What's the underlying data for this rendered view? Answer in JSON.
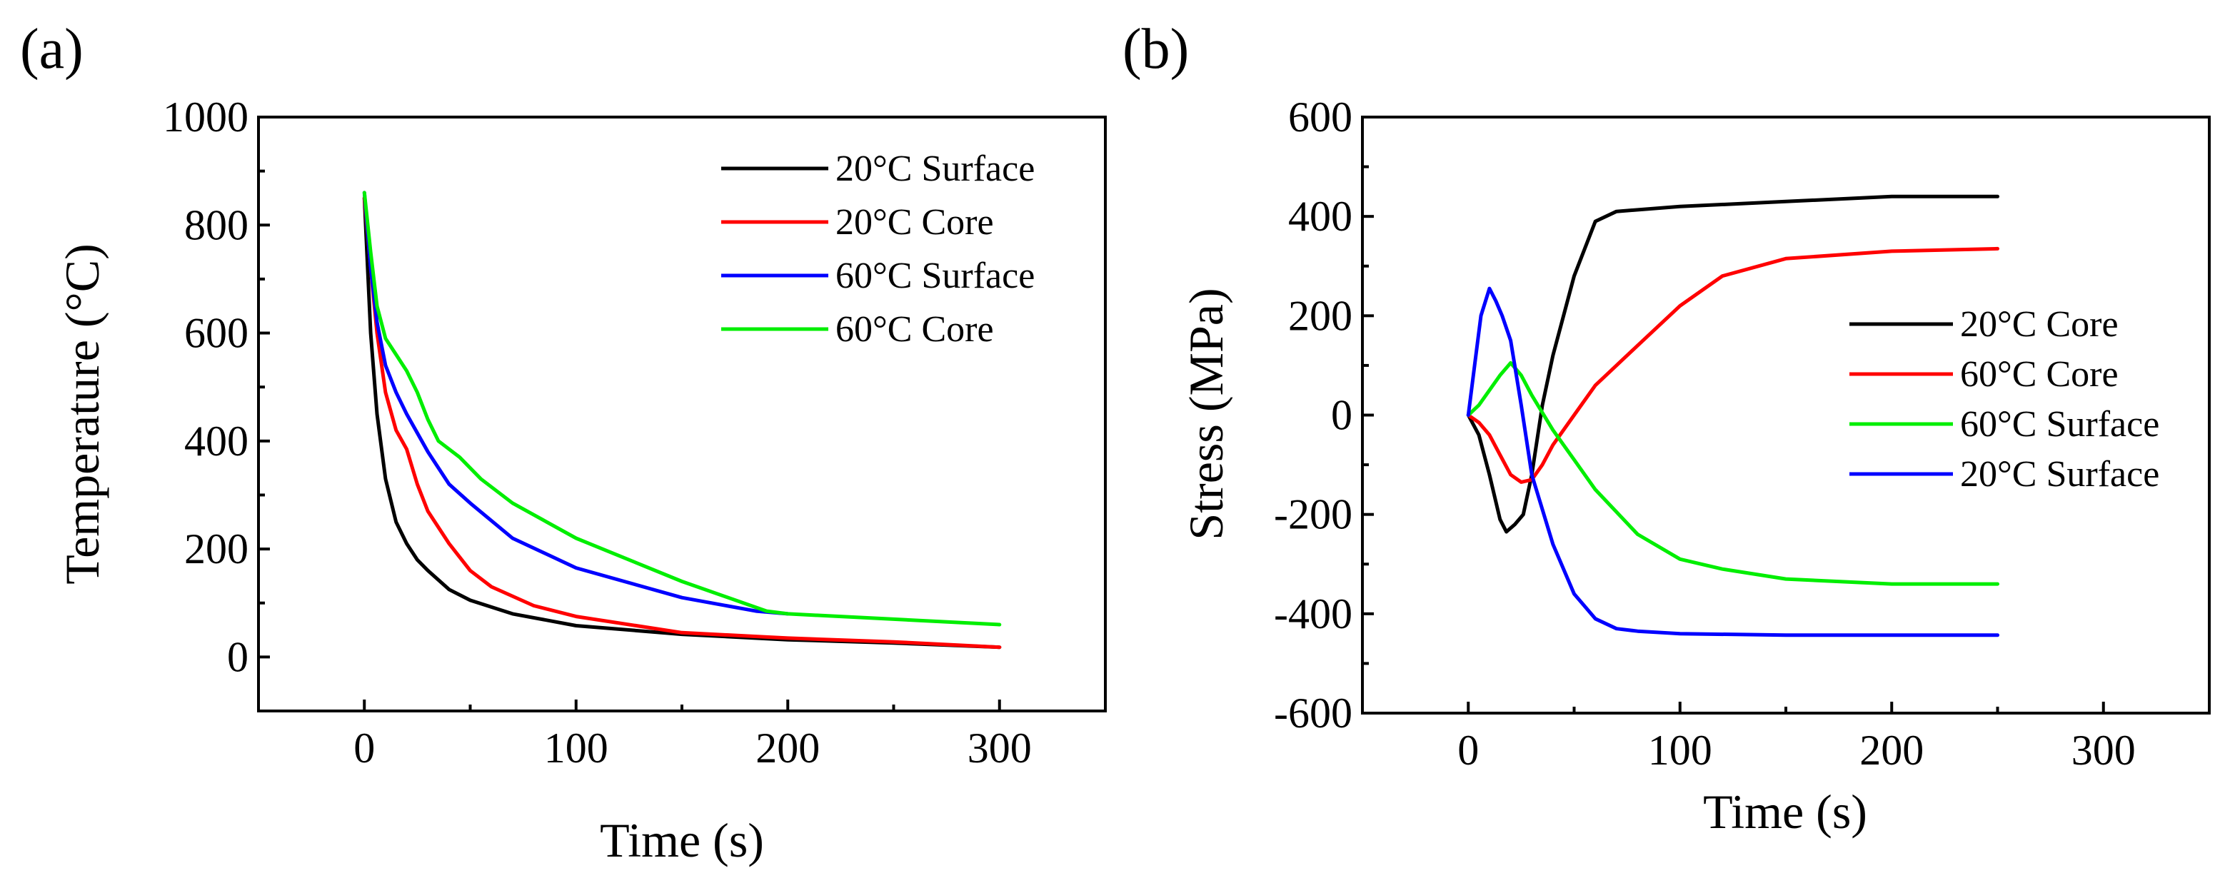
{
  "chart_data": [
    {
      "panel_label": "(a)",
      "type": "line",
      "xlabel": "Time (s)",
      "ylabel": "Temperature (°C)",
      "xlim": [
        -50,
        350
      ],
      "ylim": [
        -100,
        1000
      ],
      "xticks": [
        0,
        100,
        200,
        300
      ],
      "yticks": [
        0,
        200,
        400,
        600,
        800,
        1000
      ],
      "grid": false,
      "legend_position": "top-right",
      "series": [
        {
          "name": "20°C Surface",
          "color": "#000000",
          "x": [
            0,
            3,
            6,
            10,
            15,
            20,
            25,
            30,
            40,
            50,
            70,
            100,
            150,
            200,
            250,
            300
          ],
          "y": [
            850,
            600,
            450,
            330,
            250,
            210,
            180,
            160,
            125,
            105,
            80,
            58,
            42,
            32,
            26,
            18
          ]
        },
        {
          "name": "20°C Core",
          "color": "#ff0000",
          "x": [
            0,
            3,
            6,
            10,
            15,
            20,
            25,
            30,
            40,
            50,
            60,
            80,
            100,
            150,
            200,
            250,
            300
          ],
          "y": [
            850,
            720,
            600,
            490,
            420,
            385,
            320,
            270,
            210,
            160,
            130,
            95,
            75,
            45,
            35,
            28,
            18
          ]
        },
        {
          "name": "60°C Surface",
          "color": "#0000ff",
          "x": [
            0,
            3,
            6,
            10,
            15,
            20,
            30,
            40,
            50,
            70,
            100,
            150,
            185,
            200
          ],
          "y": [
            860,
            720,
            620,
            540,
            490,
            450,
            380,
            320,
            285,
            220,
            165,
            110,
            85,
            80
          ]
        },
        {
          "name": "60°C Core",
          "color": "#00ee00",
          "x": [
            0,
            3,
            6,
            10,
            15,
            20,
            25,
            30,
            35,
            45,
            55,
            70,
            100,
            150,
            190,
            200,
            250,
            300
          ],
          "y": [
            860,
            750,
            650,
            590,
            560,
            530,
            490,
            440,
            400,
            370,
            330,
            285,
            220,
            140,
            85,
            80,
            70,
            60
          ]
        }
      ]
    },
    {
      "panel_label": "(b)",
      "type": "line",
      "xlabel": "Time (s)",
      "ylabel": "Stress (MPa)",
      "xlim": [
        -50,
        350
      ],
      "ylim": [
        -600,
        600
      ],
      "xticks": [
        0,
        100,
        200,
        300
      ],
      "yticks": [
        -600,
        -400,
        -200,
        0,
        200,
        400,
        600
      ],
      "grid": false,
      "legend_position": "center-right",
      "series": [
        {
          "name": "20°C Core",
          "color": "#000000",
          "x": [
            0,
            5,
            10,
            15,
            18,
            22,
            26,
            30,
            35,
            40,
            50,
            60,
            70,
            100,
            150,
            200,
            250
          ],
          "y": [
            0,
            -40,
            -120,
            -210,
            -235,
            -220,
            -200,
            -120,
            20,
            120,
            280,
            390,
            410,
            420,
            430,
            440,
            440
          ]
        },
        {
          "name": "60°C Core",
          "color": "#ff0000",
          "x": [
            0,
            5,
            10,
            15,
            20,
            25,
            30,
            35,
            40,
            50,
            60,
            70,
            80,
            100,
            120,
            150,
            200,
            250
          ],
          "y": [
            0,
            -15,
            -40,
            -80,
            -120,
            -135,
            -130,
            -100,
            -60,
            0,
            60,
            100,
            140,
            220,
            280,
            315,
            330,
            335
          ]
        },
        {
          "name": "60°C Surface",
          "color": "#00ee00",
          "x": [
            0,
            5,
            10,
            15,
            20,
            25,
            30,
            40,
            50,
            60,
            80,
            100,
            120,
            150,
            200,
            250
          ],
          "y": [
            0,
            20,
            50,
            80,
            105,
            80,
            40,
            -30,
            -90,
            -150,
            -240,
            -290,
            -310,
            -330,
            -340,
            -340
          ]
        },
        {
          "name": "20°C Surface",
          "color": "#0000ff",
          "x": [
            0,
            3,
            6,
            10,
            13,
            16,
            20,
            25,
            30,
            40,
            50,
            60,
            70,
            80,
            100,
            150,
            200,
            250
          ],
          "y": [
            0,
            100,
            200,
            255,
            230,
            200,
            150,
            20,
            -120,
            -260,
            -360,
            -410,
            -430,
            -435,
            -440,
            -443,
            -443,
            -443
          ]
        }
      ]
    }
  ]
}
